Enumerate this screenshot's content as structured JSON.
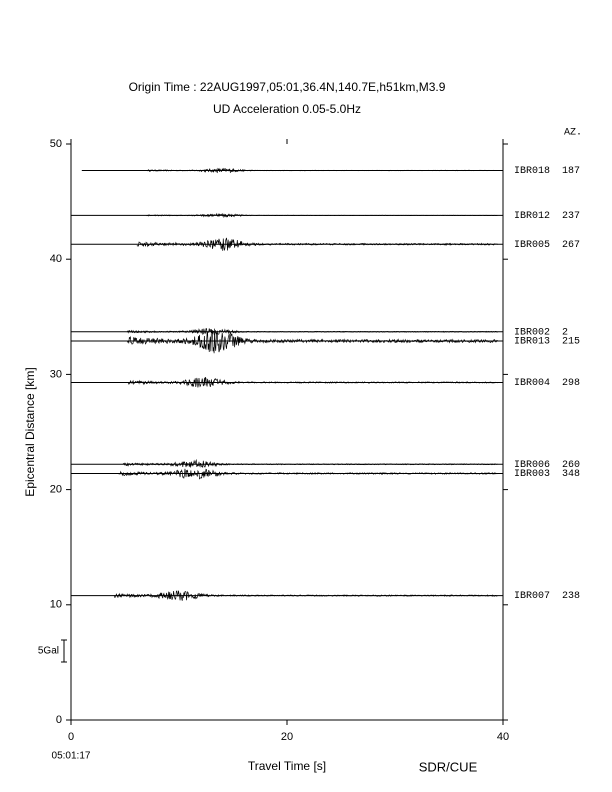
{
  "chart_data": {
    "type": "record-section",
    "title": "Origin Time : 22AUG1997,05:01,36.4N,140.7E,h51km,M3.9",
    "subtitle": "UD Acceleration 0.05-5.0Hz",
    "xlabel": "Travel Time [s]",
    "ylabel": "Epicentral Distance [km]",
    "time_origin": "05:01:17",
    "credit": "SDR/CUE",
    "azimuth_header": "AZ.",
    "scale": {
      "value": 5,
      "label": "5Gal"
    },
    "xlim": [
      0,
      40
    ],
    "xticks": [
      0,
      20,
      40
    ],
    "ylim": [
      0,
      50
    ],
    "yticks": [
      0,
      10,
      20,
      30,
      40,
      50
    ],
    "traces": [
      {
        "name": "IBR018",
        "azimuth": 187,
        "distance": 47.7,
        "start": 1.0,
        "onset": 7.1,
        "peak": 14,
        "amplitude": 0.5
      },
      {
        "name": "IBR012",
        "azimuth": 237,
        "distance": 43.8,
        "start": 0,
        "onset": 7.0,
        "peak": 14,
        "amplitude": 0.4
      },
      {
        "name": "IBR005",
        "azimuth": 267,
        "distance": 41.3,
        "start": 0,
        "onset": 6.1,
        "peak": 14.2,
        "amplitude": 1.5
      },
      {
        "name": "IBR002",
        "azimuth": 2,
        "distance": 33.7,
        "start": 0,
        "onset": 5.2,
        "peak": 13,
        "amplitude": 0.8
      },
      {
        "name": "IBR013",
        "azimuth": 215,
        "distance": 32.9,
        "start": 0,
        "onset": 5.2,
        "peak": 13.5,
        "amplitude": 2.8
      },
      {
        "name": "IBR004",
        "azimuth": 298,
        "distance": 29.3,
        "start": 0,
        "onset": 5.3,
        "peak": 12.3,
        "amplitude": 1.2
      },
      {
        "name": "IBR006",
        "azimuth": 260,
        "distance": 22.2,
        "start": 0,
        "onset": 4.8,
        "peak": 11.5,
        "amplitude": 0.9
      },
      {
        "name": "IBR003",
        "azimuth": 348,
        "distance": 21.4,
        "start": 0,
        "onset": 4.4,
        "peak": 11.5,
        "amplitude": 1.4
      },
      {
        "name": "IBR007",
        "azimuth": 238,
        "distance": 10.8,
        "start": 0,
        "onset": 4.0,
        "peak": 10,
        "amplitude": 1.2
      }
    ]
  }
}
